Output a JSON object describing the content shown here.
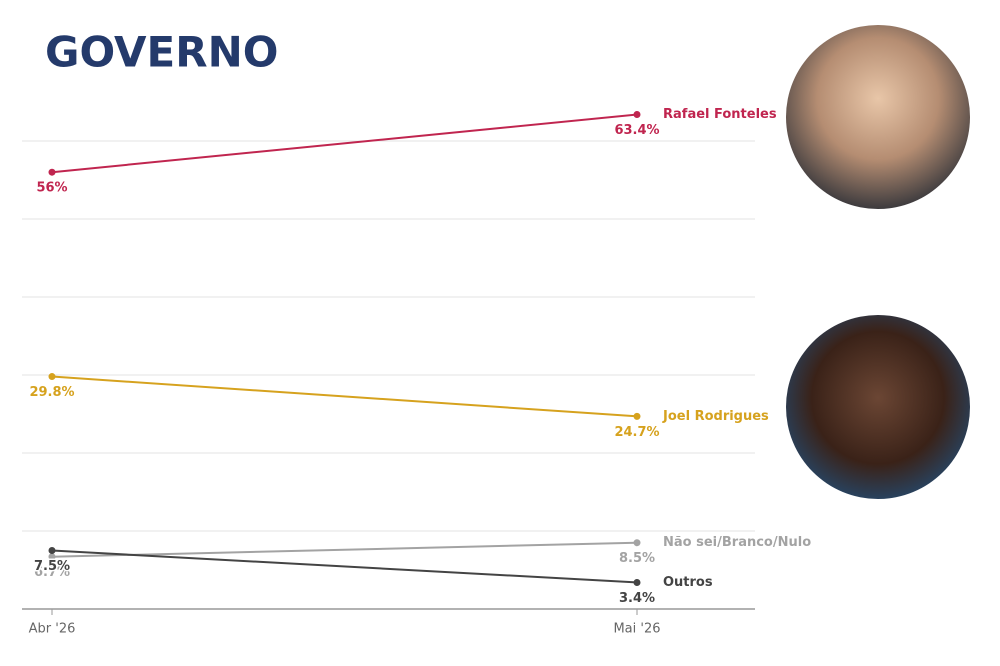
{
  "chart_data": {
    "type": "line",
    "title": "GOVERNO",
    "categories": [
      "Abr '26",
      "Mai '26"
    ],
    "series": [
      {
        "name": "Rafael Fonteles",
        "color": "#c0254f",
        "values": [
          56,
          63.4
        ],
        "value_labels": [
          "56%",
          "63.4%"
        ]
      },
      {
        "name": "Joel Rodrigues",
        "color": "#d6a21e",
        "values": [
          29.8,
          24.7
        ],
        "value_labels": [
          "29.8%",
          "24.7%"
        ]
      },
      {
        "name": "Não sei/Branco/Nulo",
        "color": "#a3a3a3",
        "values": [
          6.7,
          8.5
        ],
        "value_labels": [
          "6.7%",
          "8.5%"
        ]
      },
      {
        "name": "Outros",
        "color": "#444444",
        "values": [
          7.5,
          3.4
        ],
        "value_labels": [
          "7.5%",
          "3.4%"
        ]
      }
    ],
    "ylim": [
      0,
      70
    ],
    "ygrid": [
      0,
      10,
      20,
      30,
      40,
      50,
      60
    ]
  }
}
